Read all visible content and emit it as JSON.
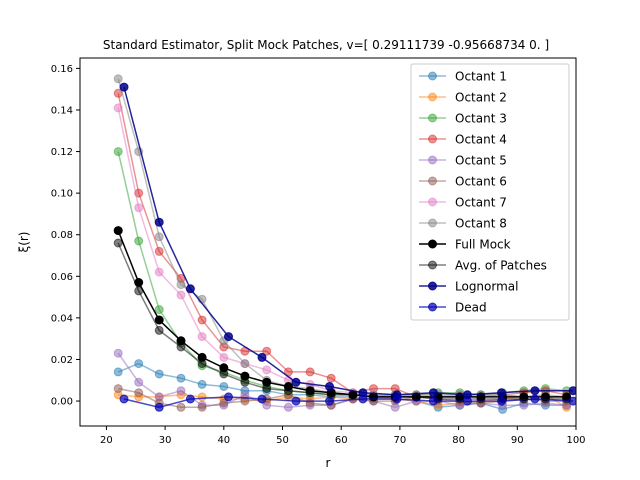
{
  "chart_data": {
    "type": "line",
    "title": "Standard Estimator, Split Mock Patches, v=[ 0.29111739 -0.95668734  0.        ]",
    "xlabel": "r",
    "ylabel": "ξ(r)",
    "xlim": [
      15.5,
      100
    ],
    "ylim": [
      -0.012,
      0.165
    ],
    "xticks": [
      20,
      30,
      40,
      50,
      60,
      70,
      80,
      90,
      100
    ],
    "yticks": [
      0.0,
      0.02,
      0.04,
      0.06,
      0.08,
      0.1,
      0.12,
      0.14,
      0.16
    ],
    "xtick_labels": [
      "20",
      "30",
      "40",
      "50",
      "60",
      "70",
      "80",
      "90",
      "100"
    ],
    "ytick_labels": [
      "0.00",
      "0.02",
      "0.04",
      "0.06",
      "0.08",
      "0.10",
      "0.12",
      "0.14",
      "0.16"
    ],
    "grid": false,
    "legend_position": "upper right",
    "x": [
      22,
      25.5,
      29,
      32.7,
      36.3,
      40,
      43.6,
      47.3,
      51,
      54.7,
      58.3,
      62,
      65.5,
      69.2,
      72.8,
      76.5,
      80.2,
      83.8,
      87.5,
      91.1,
      94.8,
      98.4
    ],
    "series": [
      {
        "name": "Octant 1",
        "color": "#1f77b4",
        "opacity": 0.5,
        "values": [
          0.014,
          0.018,
          0.013,
          0.011,
          0.008,
          0.007,
          0.005,
          0.005,
          0.003,
          0.003,
          0.002,
          0.002,
          0.001,
          0.001,
          0.0,
          -0.003,
          -0.002,
          -0.001,
          -0.004,
          -0.001,
          -0.002,
          -0.002
        ]
      },
      {
        "name": "Octant 2",
        "color": "#ff7f0e",
        "opacity": 0.5,
        "values": [
          0.003,
          0.002,
          0.002,
          0.003,
          0.002,
          0.001,
          0.001,
          0.0,
          0.002,
          0.001,
          0.002,
          0.001,
          0.002,
          0.001,
          0.0,
          -0.002,
          -0.001,
          0.0,
          0.001,
          0.002,
          0.003,
          -0.003
        ]
      },
      {
        "name": "Octant 3",
        "color": "#2ca02c",
        "opacity": 0.5,
        "values": [
          0.12,
          0.077,
          0.044,
          0.028,
          0.017,
          0.014,
          0.01,
          0.007,
          0.005,
          0.004,
          0.003,
          0.003,
          0.002,
          0.003,
          0.003,
          0.004,
          0.004,
          0.003,
          0.004,
          0.005,
          0.006,
          0.005
        ]
      },
      {
        "name": "Octant 4",
        "color": "#d62728",
        "opacity": 0.5,
        "values": [
          0.148,
          0.1,
          0.072,
          0.059,
          0.039,
          0.026,
          0.024,
          0.024,
          0.014,
          0.014,
          0.011,
          0.004,
          0.006,
          0.006,
          0.002,
          0.002,
          0.002,
          0.002,
          0.003,
          0.004,
          0.005,
          0.003
        ]
      },
      {
        "name": "Octant 5",
        "color": "#9467bd",
        "opacity": 0.5,
        "values": [
          0.023,
          0.009,
          0.002,
          0.005,
          -0.002,
          -0.002,
          0.003,
          -0.002,
          -0.003,
          -0.002,
          -0.002,
          0.001,
          0.0,
          -0.003,
          0.0,
          0.0,
          -0.002,
          -0.001,
          -0.002,
          -0.002,
          -0.001,
          -0.002
        ]
      },
      {
        "name": "Octant 6",
        "color": "#8c564b",
        "opacity": 0.5,
        "values": [
          0.006,
          0.004,
          -0.001,
          -0.003,
          -0.003,
          -0.001,
          0.0,
          0.001,
          0.003,
          -0.001,
          -0.002,
          0.001,
          0.0,
          0.0,
          0.002,
          0.001,
          0.0,
          -0.001,
          0.0,
          0.001,
          0.0,
          0.0
        ]
      },
      {
        "name": "Octant 7",
        "color": "#e377c2",
        "opacity": 0.5,
        "values": [
          0.141,
          0.093,
          0.062,
          0.051,
          0.031,
          0.021,
          0.018,
          0.015,
          0.01,
          0.008,
          0.005,
          0.004,
          0.003,
          0.002,
          0.003,
          0.002,
          0.003,
          0.002,
          0.003,
          0.002,
          0.002,
          0.002
        ]
      },
      {
        "name": "Octant 8",
        "color": "#7f7f7f",
        "opacity": 0.5,
        "values": [
          0.155,
          0.12,
          0.079,
          0.056,
          0.049,
          0.029,
          0.018,
          0.01,
          0.007,
          0.006,
          0.004,
          0.003,
          0.003,
          0.003,
          0.003,
          0.003,
          0.003,
          0.003,
          0.003,
          0.002,
          0.003,
          0.002
        ]
      },
      {
        "name": "Full Mock",
        "color": "#000000",
        "opacity": 1.0,
        "values": [
          0.082,
          0.057,
          0.039,
          0.029,
          0.021,
          0.016,
          0.012,
          0.009,
          0.007,
          0.005,
          0.004,
          0.003,
          0.002,
          0.002,
          0.002,
          0.002,
          0.002,
          0.002,
          0.002,
          0.002,
          0.002,
          0.002
        ]
      },
      {
        "name": "Avg. of Patches",
        "color": "#000000",
        "opacity": 0.5,
        "values": [
          0.076,
          0.053,
          0.034,
          0.026,
          0.018,
          0.013,
          0.009,
          0.006,
          0.005,
          0.004,
          0.003,
          0.003,
          0.002,
          0.002,
          0.002,
          0.001,
          0.001,
          0.001,
          0.001,
          0.001,
          0.001,
          0.001
        ]
      }
    ],
    "lognormal": {
      "name": "Lognormal",
      "color": "#00008b",
      "opacity": 0.85,
      "x": [
        23,
        29,
        34.3,
        40.8,
        46.5,
        52.3,
        58,
        63.7,
        69.5,
        75.7,
        81.5,
        87.3,
        93,
        99.5
      ],
      "values": [
        0.151,
        0.086,
        0.054,
        0.031,
        0.021,
        0.009,
        0.007,
        0.004,
        0.003,
        0.004,
        0.003,
        0.004,
        0.005,
        0.005
      ]
    },
    "dead": {
      "name": "Dead",
      "color": "#0000b4",
      "opacity": 0.7,
      "x": [
        23,
        29,
        34.3,
        40.8,
        46.5,
        52.3,
        58,
        63.7,
        69.5,
        75.7,
        81.5,
        87.3,
        93,
        99.5
      ],
      "values": [
        0.001,
        -0.003,
        0.001,
        0.002,
        0.001,
        0.0,
        0.0,
        0.001,
        0.001,
        0.0,
        0.0,
        0.0,
        0.001,
        0.0
      ]
    }
  }
}
